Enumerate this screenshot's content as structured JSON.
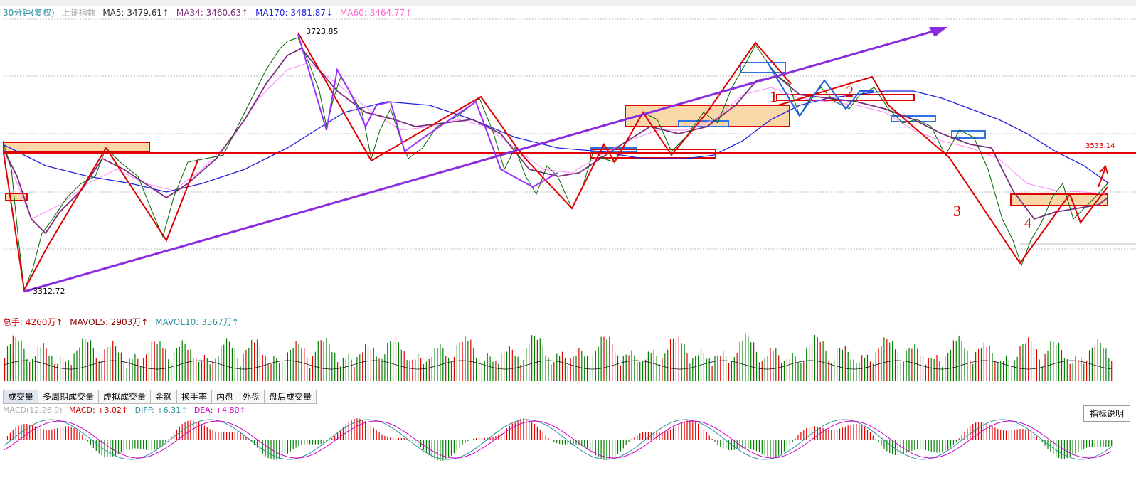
{
  "price_legend": {
    "period": "30分钟(复权)",
    "index_name": "上证指数",
    "ma5": "MA5: 3479.61↑",
    "ma34": "MA34: 3460.63↑",
    "ma170": "MA170: 3481.87↓",
    "ma60": "MA60: 3464.77↑"
  },
  "vol_legend": {
    "total": "总手: 4260万↑",
    "mavol5": "MAVOL5: 2903万↑",
    "mavol10": "MAVOL10: 3567万↑"
  },
  "macd_legend": {
    "name": "MACD(12,26,9)",
    "macd": "MACD: +3.02↑",
    "diff": "DIFF: +6.31↑",
    "dea": "DEA: +4.80↑"
  },
  "tabs": [
    "成交量",
    "多周期成交量",
    "虚拟成交量",
    "金额",
    "换手率",
    "内盘",
    "外盘",
    "盘后成交量"
  ],
  "help_button": "指标说明",
  "annotations": {
    "high": "3723.85",
    "low": "3312.72",
    "level": "3533.14",
    "wave_labels": [
      "1",
      "2",
      "3",
      "4"
    ]
  },
  "colors": {
    "up": "#e00000",
    "down": "#008000",
    "ma5": "#000000",
    "ma34": "#7b2c7b",
    "ma170": "#2020e0",
    "ma60": "#ff88ff",
    "trend_arrow": "#8a2be2",
    "zone_fill": "#f9d7a8"
  },
  "chart_data": {
    "type": "line",
    "ylim": [
      3300,
      3740
    ],
    "series_price_approx": [
      3545,
      3312,
      3395,
      3450,
      3545,
      3360,
      3540,
      3520,
      3723,
      3600,
      3520,
      3640,
      3510,
      3565,
      3625,
      3520,
      3600,
      3470,
      3550,
      3510,
      3600,
      3540,
      3600,
      3700,
      3640,
      3600,
      3640,
      3620,
      3525,
      3560,
      3440,
      3360,
      3450,
      3400,
      3440,
      3455,
      3470,
      3480
    ],
    "key_levels": {
      "high": 3723.85,
      "low": 3312.72,
      "resistance": 3533.14
    }
  }
}
